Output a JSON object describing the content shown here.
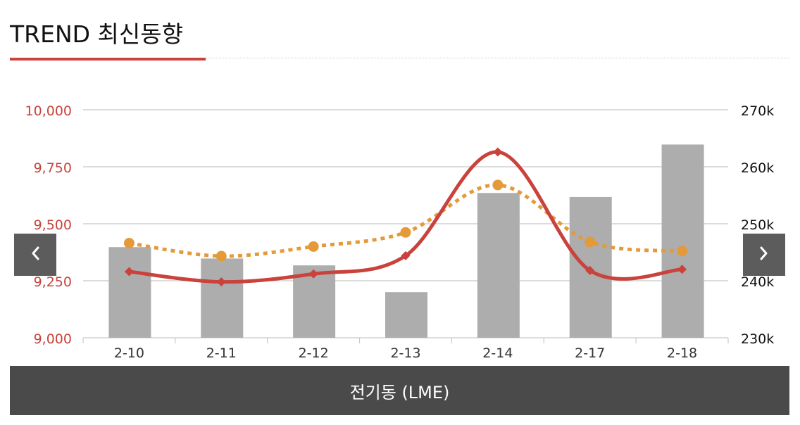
{
  "header": {
    "title": "TREND 최신동향"
  },
  "nav": {
    "prev_icon": "chevron-left-icon",
    "next_icon": "chevron-right-icon"
  },
  "footer": {
    "label": "전기동 (LME)"
  },
  "colors": {
    "price_line": "#c9423c",
    "avg_line": "#e59a3a",
    "bars": "#adadad",
    "grid": "#c8c8c8",
    "left_axis_text": "#c9423c",
    "right_axis_text": "#111111",
    "footer_bg": "#4a4a4a",
    "nav_bg": "#5c5c5c"
  },
  "chart_data": {
    "type": "bar",
    "categories": [
      "2-10",
      "2-11",
      "2-12",
      "2-13",
      "2-14",
      "2-17",
      "2-18"
    ],
    "series": [
      {
        "type": "bar",
        "axis": "right",
        "values": [
          245900,
          243900,
          242700,
          238000,
          255400,
          254700,
          263900
        ]
      },
      {
        "type": "line",
        "axis": "left",
        "smooth": true,
        "marker": "diamond",
        "values": [
          9290,
          9245,
          9280,
          9360,
          9815,
          9295,
          9300
        ]
      },
      {
        "type": "line",
        "axis": "left",
        "smooth": true,
        "dashed": true,
        "marker": "circle",
        "values": [
          9415,
          9358,
          9400,
          9462,
          9670,
          9420,
          9380
        ]
      }
    ],
    "left_axis": {
      "min": 9000,
      "max": 10000,
      "ticks": [
        "9,000",
        "9,250",
        "9,500",
        "9,750",
        "10,000"
      ]
    },
    "right_axis": {
      "min": 230000,
      "max": 270000,
      "ticks": [
        "230k",
        "240k",
        "250k",
        "260k",
        "270k"
      ]
    },
    "grid": true
  }
}
